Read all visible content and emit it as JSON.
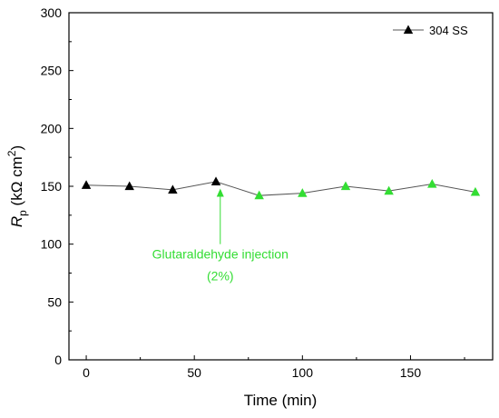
{
  "chart_data": {
    "type": "line",
    "xlabel": "Time (min)",
    "ylabel": {
      "main": "R",
      "sub": "p",
      "unit": " (kΩ cm",
      "sup": "2",
      "close": ")"
    },
    "xlim": [
      -8,
      188
    ],
    "ylim": [
      0,
      300
    ],
    "xticks": [
      0,
      50,
      100,
      150
    ],
    "yticks": [
      0,
      50,
      100,
      150,
      200,
      250,
      300
    ],
    "grid": false,
    "legend": {
      "position": "top-right",
      "label": "304 SS"
    },
    "series": [
      {
        "name": "304 SS",
        "line_color": "#555555",
        "points": [
          {
            "x": 0,
            "y": 151,
            "color": "#000000"
          },
          {
            "x": 20,
            "y": 150,
            "color": "#000000"
          },
          {
            "x": 40,
            "y": 147,
            "color": "#000000"
          },
          {
            "x": 60,
            "y": 154,
            "color": "#000000"
          },
          {
            "x": 80,
            "y": 142,
            "color": "#33dd33"
          },
          {
            "x": 100,
            "y": 144,
            "color": "#33dd33"
          },
          {
            "x": 120,
            "y": 150,
            "color": "#33dd33"
          },
          {
            "x": 140,
            "y": 146,
            "color": "#33dd33"
          },
          {
            "x": 160,
            "y": 152,
            "color": "#33dd33"
          },
          {
            "x": 180,
            "y": 145,
            "color": "#33dd33"
          }
        ]
      }
    ],
    "annotation": {
      "lines": [
        "Glutaraldehyde injection",
        "(2%)"
      ],
      "color": "#33dd33",
      "arrow_x": 62,
      "arrow_tip_y": 148,
      "arrow_tail_y": 100
    }
  }
}
